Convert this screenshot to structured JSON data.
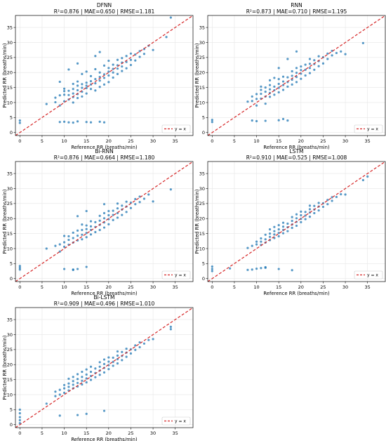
{
  "chart_data": [
    {
      "type": "scatter",
      "title": "DFNN",
      "subtitle": "R²=0.876 | MAE=0.650 | RMSE=1.181",
      "xlabel": "Reference RR (breaths/min)",
      "ylabel": "Predicted RR (breaths/min)",
      "xlim": [
        -1,
        39
      ],
      "ylim": [
        -1,
        39
      ],
      "xticks": [
        0,
        5,
        10,
        15,
        20,
        25,
        30,
        35
      ],
      "yticks": [
        0,
        5,
        10,
        15,
        20,
        25,
        30,
        35
      ],
      "grid": true,
      "legend": {
        "position": "bottom-right",
        "entries": [
          "y = x"
        ]
      },
      "series": [
        {
          "name": "y = x",
          "kind": "reference-line",
          "color": "#d62728",
          "x": [
            -1,
            39
          ],
          "y": [
            -1,
            39
          ]
        },
        {
          "kind": "points",
          "color": "#1f77b4",
          "x": [
            0,
            0,
            8,
            8,
            9,
            9,
            9,
            10,
            10,
            10,
            10,
            10,
            11,
            11,
            11,
            11,
            12,
            12,
            12,
            12,
            12,
            12,
            13,
            13,
            13,
            13,
            13,
            13,
            14,
            14,
            14,
            14,
            14,
            15,
            15,
            15,
            15,
            15,
            15,
            16,
            16,
            16,
            16,
            16,
            17,
            17,
            17,
            17,
            18,
            18,
            18,
            18,
            18,
            19,
            19,
            19,
            19,
            19,
            20,
            20,
            20,
            20,
            20,
            21,
            21,
            21,
            21,
            22,
            22,
            22,
            22,
            23,
            23,
            23,
            23,
            24,
            24,
            24,
            25,
            25,
            25,
            26,
            26,
            27,
            27,
            28,
            28,
            29,
            30,
            33,
            34,
            9,
            11,
            13,
            17,
            18,
            6
          ],
          "y": [
            3.2,
            4.0,
            10.1,
            11.6,
            3.5,
            9.0,
            12.4,
            3.6,
            10.4,
            12.6,
            13.8,
            14.6,
            3.4,
            11.0,
            12.5,
            13.9,
            3.3,
            10.0,
            11.8,
            13.0,
            14.5,
            16.2,
            3.7,
            11.5,
            12.8,
            14.1,
            15.6,
            17.0,
            12.0,
            13.6,
            14.9,
            16.1,
            19.5,
            3.5,
            13.0,
            14.8,
            15.6,
            16.6,
            20.3,
            3.4,
            14.5,
            16.0,
            17.1,
            18.8,
            14.0,
            16.4,
            17.8,
            21.1,
            3.6,
            15.2,
            17.3,
            18.5,
            20.0,
            3.4,
            16.0,
            18.2,
            19.4,
            22.3,
            16.8,
            19.0,
            20.3,
            21.5,
            23.9,
            18.3,
            20.0,
            21.2,
            22.6,
            19.5,
            21.3,
            22.4,
            24.2,
            20.5,
            22.0,
            23.3,
            24.8,
            21.4,
            23.5,
            25.5,
            22.5,
            24.2,
            26.3,
            24.0,
            26.0,
            25.2,
            27.1,
            26.2,
            27.8,
            28.9,
            27.5,
            31.8,
            38.3,
            16.9,
            21.0,
            23.0,
            25.5,
            26.8,
            9.5
          ]
        }
      ]
    },
    {
      "type": "scatter",
      "title": "RNN",
      "subtitle": "R²=0.873 | MAE=0.710 | RMSE=1.195",
      "xlabel": "Reference RR (breaths/min)",
      "ylabel": "Predicted RR (breaths/min)",
      "xlim": [
        -1,
        39
      ],
      "ylim": [
        -1,
        39
      ],
      "xticks": [
        0,
        5,
        10,
        15,
        20,
        25,
        30,
        35
      ],
      "yticks": [
        0,
        5,
        10,
        15,
        20,
        25,
        30,
        35
      ],
      "grid": true,
      "legend": {
        "position": "bottom-right",
        "entries": [
          "y = x"
        ]
      },
      "series": [
        {
          "name": "y = x",
          "kind": "reference-line",
          "color": "#d62728",
          "x": [
            -1,
            39
          ],
          "y": [
            -1,
            39
          ]
        },
        {
          "kind": "points",
          "color": "#1f77b4",
          "x": [
            0,
            0,
            8,
            9,
            9,
            9,
            10,
            10,
            10,
            11,
            11,
            11,
            11,
            12,
            12,
            12,
            12,
            13,
            13,
            13,
            13,
            13,
            14,
            14,
            14,
            14,
            15,
            15,
            15,
            15,
            15,
            16,
            16,
            16,
            16,
            17,
            17,
            17,
            17,
            18,
            18,
            18,
            18,
            19,
            19,
            19,
            19,
            20,
            20,
            20,
            20,
            21,
            21,
            21,
            22,
            22,
            22,
            22,
            23,
            23,
            23,
            24,
            24,
            24,
            25,
            25,
            26,
            26,
            27,
            27,
            28,
            29,
            30,
            34,
            15,
            17,
            19,
            10,
            12,
            16
          ],
          "y": [
            3.5,
            4.2,
            10.3,
            4.0,
            10.5,
            12.0,
            3.8,
            11.2,
            12.8,
            11.3,
            12.9,
            14.2,
            15.3,
            3.9,
            12.0,
            13.6,
            15.0,
            11.9,
            13.2,
            14.4,
            15.8,
            17.4,
            12.6,
            14.1,
            15.3,
            18.2,
            4.1,
            13.4,
            14.9,
            16.2,
            17.8,
            14.2,
            15.8,
            17.0,
            18.6,
            4.0,
            15.3,
            16.8,
            18.4,
            16.0,
            17.6,
            18.9,
            20.4,
            16.8,
            18.5,
            19.9,
            21.5,
            17.9,
            19.6,
            20.8,
            22.0,
            19.0,
            20.9,
            22.6,
            19.8,
            21.5,
            22.9,
            24.5,
            20.9,
            22.8,
            24.1,
            22.1,
            23.8,
            25.4,
            23.0,
            25.1,
            24.5,
            26.3,
            25.7,
            27.2,
            26.5,
            27.0,
            26.1,
            29.8,
            21.5,
            24.5,
            27.0,
            9.0,
            9.6,
            4.5
          ]
        }
      ]
    },
    {
      "type": "scatter",
      "title": "Bi-RNN",
      "subtitle": "R²=0.876 | MAE=0.664 | RMSE=1.180",
      "xlabel": "Reference RR (breaths/min)",
      "ylabel": "Predicted RR (breaths/min)",
      "xlim": [
        -1,
        39
      ],
      "ylim": [
        -1,
        39
      ],
      "xticks": [
        0,
        5,
        10,
        15,
        20,
        25,
        30,
        35
      ],
      "yticks": [
        0,
        5,
        10,
        15,
        20,
        25,
        30,
        35
      ],
      "grid": true,
      "legend": {
        "position": "bottom-right",
        "entries": [
          "y = x"
        ]
      },
      "series": [
        {
          "name": "y = x",
          "kind": "reference-line",
          "color": "#d62728",
          "x": [
            -1,
            39
          ],
          "y": [
            -1,
            39
          ]
        },
        {
          "kind": "points",
          "color": "#1f77b4",
          "x": [
            0,
            0,
            0,
            6,
            8,
            9,
            9,
            10,
            10,
            10,
            11,
            11,
            11,
            12,
            12,
            12,
            12,
            13,
            13,
            13,
            13,
            14,
            14,
            14,
            14,
            15,
            15,
            15,
            15,
            15,
            16,
            16,
            16,
            16,
            17,
            17,
            17,
            18,
            18,
            18,
            18,
            19,
            19,
            19,
            19,
            20,
            20,
            20,
            20,
            21,
            21,
            21,
            22,
            22,
            22,
            22,
            23,
            23,
            23,
            24,
            24,
            24,
            25,
            25,
            26,
            26,
            27,
            27,
            28,
            29,
            30,
            34,
            13,
            15,
            19,
            10,
            12
          ],
          "y": [
            3.0,
            3.6,
            4.2,
            10.0,
            10.9,
            9.0,
            11.4,
            10.6,
            12.1,
            14.2,
            11.3,
            12.9,
            14.1,
            3.0,
            12.0,
            13.5,
            15.3,
            3.2,
            12.7,
            14.3,
            16.0,
            13.1,
            14.6,
            16.2,
            18.0,
            3.9,
            13.8,
            15.2,
            16.5,
            17.7,
            14.7,
            16.2,
            17.4,
            19.1,
            15.5,
            17.2,
            18.8,
            16.2,
            17.9,
            19.3,
            20.9,
            17.0,
            18.7,
            20.1,
            21.8,
            18.1,
            19.8,
            21.1,
            22.5,
            19.5,
            21.2,
            22.6,
            20.3,
            21.8,
            23.4,
            25.0,
            21.2,
            23.0,
            24.3,
            22.2,
            24.0,
            25.6,
            23.5,
            25.3,
            24.8,
            26.5,
            25.5,
            27.3,
            26.6,
            28.0,
            25.7,
            29.7,
            20.8,
            22.5,
            24.8,
            3.2,
            2.9
          ]
        }
      ]
    },
    {
      "type": "scatter",
      "title": "LSTM",
      "subtitle": "R²=0.910 | MAE=0.525 | RMSE=1.008",
      "xlabel": "Reference RR (breaths/min)",
      "ylabel": "Predicted RR (breaths/min)",
      "xlim": [
        -1,
        39
      ],
      "ylim": [
        -1,
        39
      ],
      "xticks": [
        0,
        5,
        10,
        15,
        20,
        25,
        30,
        35
      ],
      "yticks": [
        0,
        5,
        10,
        15,
        20,
        25,
        30,
        35
      ],
      "grid": true,
      "legend": {
        "position": "bottom-right",
        "entries": [
          "y = x"
        ]
      },
      "series": [
        {
          "name": "y = x",
          "kind": "reference-line",
          "color": "#d62728",
          "x": [
            -1,
            39
          ],
          "y": [
            -1,
            39
          ]
        },
        {
          "kind": "points",
          "color": "#1f77b4",
          "x": [
            0,
            0,
            0,
            4,
            8,
            8,
            9,
            9,
            10,
            10,
            10,
            11,
            11,
            11,
            11,
            12,
            12,
            12,
            12,
            13,
            13,
            13,
            13,
            14,
            14,
            14,
            14,
            15,
            15,
            15,
            15,
            16,
            16,
            16,
            16,
            17,
            17,
            17,
            18,
            18,
            18,
            18,
            19,
            19,
            19,
            19,
            20,
            20,
            20,
            20,
            21,
            21,
            21,
            22,
            22,
            22,
            22,
            23,
            23,
            23,
            24,
            24,
            24,
            25,
            25,
            26,
            26,
            27,
            27,
            28,
            29,
            30,
            34,
            35,
            12,
            15,
            18
          ],
          "y": [
            2.5,
            3.2,
            4.0,
            3.4,
            2.9,
            10.2,
            3.0,
            10.9,
            3.3,
            11.4,
            12.3,
            3.5,
            11.2,
            12.3,
            13.4,
            3.8,
            12.0,
            13.1,
            14.6,
            12.8,
            13.9,
            15.0,
            16.4,
            13.5,
            14.7,
            15.8,
            17.2,
            14.1,
            15.2,
            16.4,
            17.8,
            15.1,
            16.2,
            17.3,
            18.6,
            15.8,
            17.1,
            18.3,
            16.9,
            18.0,
            19.2,
            20.5,
            17.6,
            18.9,
            20.1,
            21.4,
            18.8,
            19.9,
            21.1,
            22.3,
            19.8,
            21.0,
            22.2,
            20.6,
            22.0,
            23.1,
            24.3,
            21.8,
            23.0,
            24.2,
            22.7,
            24.0,
            25.2,
            23.9,
            25.1,
            24.8,
            26.2,
            25.9,
            27.1,
            27.2,
            28.1,
            28.0,
            32.8,
            34.0,
            3.6,
            3.2,
            2.8
          ]
        }
      ]
    },
    {
      "type": "scatter",
      "title": "Bi-LSTM",
      "subtitle": "R²=0.909 | MAE=0.496 | RMSE=1.010",
      "xlabel": "Reference RR (breaths/min)",
      "ylabel": "Predicted RR (breaths/min)",
      "xlim": [
        -1,
        39
      ],
      "ylim": [
        -1,
        39
      ],
      "xticks": [
        0,
        5,
        10,
        15,
        20,
        25,
        30,
        35
      ],
      "yticks": [
        0,
        5,
        10,
        15,
        20,
        25,
        30,
        35
      ],
      "grid": true,
      "legend": {
        "position": "bottom-right",
        "entries": [
          "y = x"
        ]
      },
      "series": [
        {
          "name": "y = x",
          "kind": "reference-line",
          "color": "#d62728",
          "x": [
            -1,
            39
          ],
          "y": [
            -1,
            39
          ]
        },
        {
          "kind": "points",
          "color": "#1f77b4",
          "x": [
            0,
            0,
            0,
            0,
            0,
            6,
            8,
            8,
            9,
            9,
            10,
            10,
            10,
            11,
            11,
            11,
            11,
            12,
            12,
            12,
            12,
            13,
            13,
            13,
            13,
            14,
            14,
            14,
            14,
            15,
            15,
            15,
            15,
            16,
            16,
            16,
            16,
            17,
            17,
            17,
            18,
            18,
            18,
            18,
            19,
            19,
            19,
            19,
            20,
            20,
            20,
            20,
            21,
            21,
            21,
            22,
            22,
            22,
            22,
            23,
            23,
            23,
            24,
            24,
            24,
            25,
            25,
            26,
            26,
            27,
            27,
            28,
            29,
            30,
            34,
            34,
            13,
            15,
            19,
            9
          ],
          "y": [
            0.5,
            1.5,
            2.5,
            3.8,
            5.0,
            7.0,
            9.5,
            11.0,
            10.0,
            11.6,
            10.6,
            12.1,
            13.2,
            11.4,
            12.6,
            13.7,
            15.3,
            12.1,
            13.3,
            14.5,
            15.9,
            12.7,
            13.9,
            15.2,
            16.8,
            13.4,
            14.6,
            15.9,
            17.6,
            14.1,
            15.4,
            16.7,
            18.4,
            14.9,
            16.2,
            17.6,
            19.3,
            15.8,
            17.2,
            18.7,
            16.6,
            18.0,
            19.3,
            20.8,
            17.4,
            18.9,
            20.2,
            21.7,
            18.5,
            19.8,
            21.0,
            22.4,
            19.6,
            20.9,
            22.3,
            20.4,
            21.8,
            23.0,
            24.4,
            21.5,
            22.9,
            24.2,
            22.6,
            24.0,
            25.3,
            23.7,
            25.1,
            24.9,
            26.4,
            25.8,
            27.4,
            27.0,
            28.2,
            28.5,
            31.8,
            32.6,
            3.2,
            3.6,
            4.6,
            3.0
          ]
        }
      ]
    }
  ]
}
